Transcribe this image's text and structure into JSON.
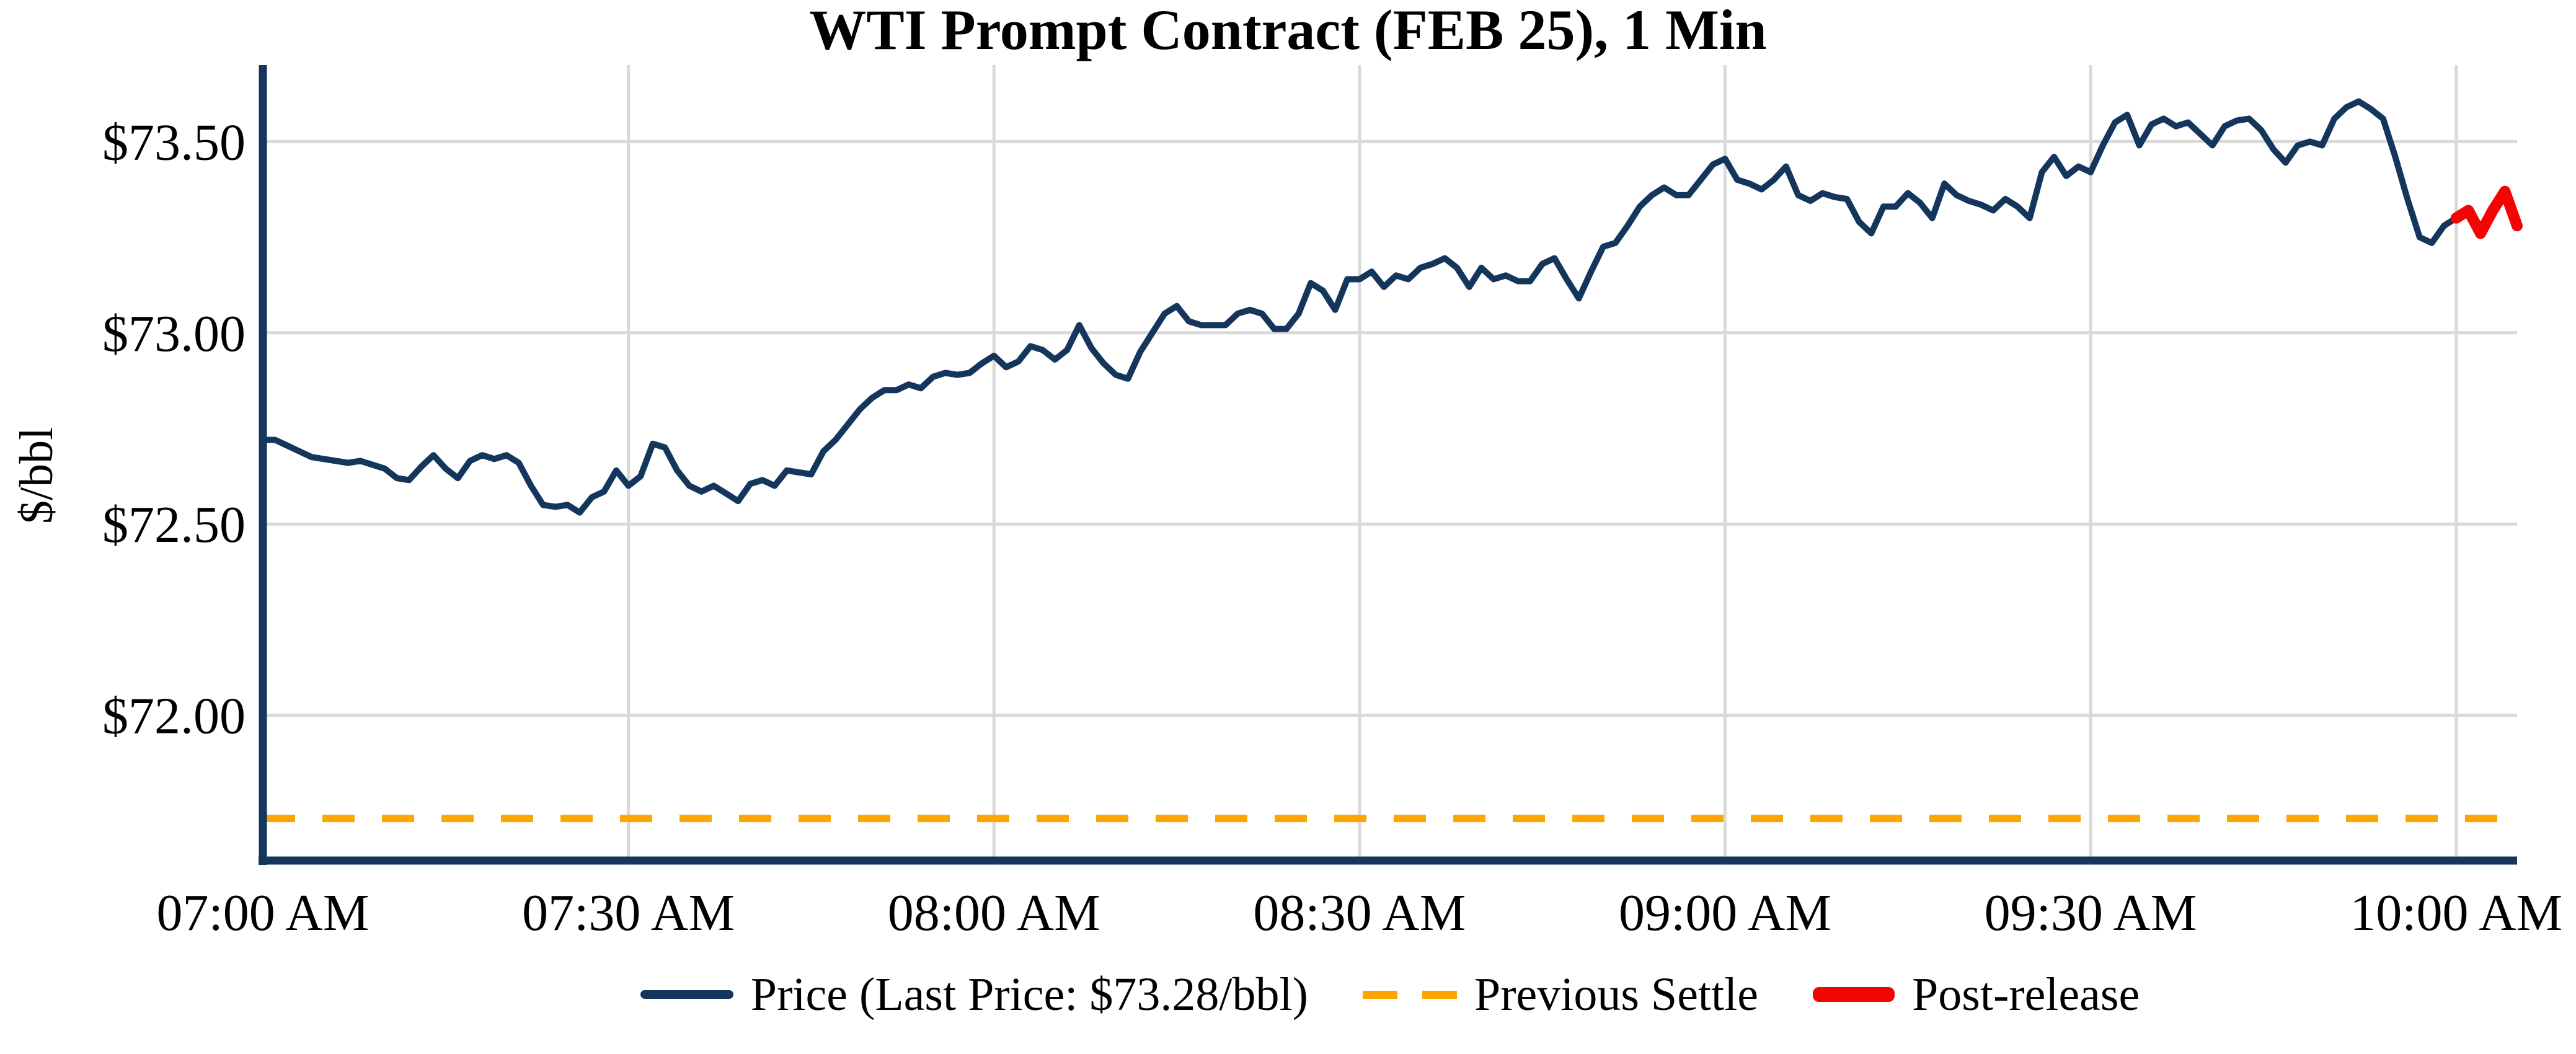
{
  "figure": {
    "title": "WTI Prompt Contract (FEB 25), 1 Min"
  },
  "legend": {
    "items": [
      {
        "name": "price",
        "label": "Price (Last Price: $73.28/bbl)",
        "swatch": "solid-line",
        "color": "#14365C"
      },
      {
        "name": "previous-settle",
        "label": "Previous Settle",
        "swatch": "dashed-line",
        "color": "#FFA500"
      },
      {
        "name": "post-release",
        "label": "Post-release",
        "swatch": "thick-line",
        "color": "#F40505"
      }
    ]
  },
  "colors": {
    "price_line": "#14365C",
    "previous_settle_line": "#FFA500",
    "post_release_line": "#F40505",
    "grid": "#D9D9D9",
    "axis": "#14365C",
    "text": "#000000",
    "background": "#FFFFFF"
  },
  "chart_data": {
    "type": "line",
    "title": "WTI Prompt Contract (FEB 25), 1 Min",
    "xlabel": "",
    "ylabel": "$/bbl",
    "last_price": 73.28,
    "previous_settle": {
      "value": 71.73,
      "style": "dashed",
      "color": "#FFA500"
    },
    "x_axis": {
      "unit": "minutes-after-07:00-AM",
      "range_minutes": [
        0,
        185
      ],
      "tick_minutes": [
        0,
        30,
        60,
        90,
        120,
        150,
        180
      ],
      "tick_labels": [
        "07:00 AM",
        "07:30 AM",
        "08:00 AM",
        "08:30 AM",
        "09:00 AM",
        "09:30 AM",
        "10:00 AM"
      ]
    },
    "y_axis": {
      "range": [
        71.62,
        73.7
      ],
      "tick_values": [
        73.5,
        73.0,
        72.5,
        72.0
      ],
      "tick_labels": [
        "$73.50",
        "$73.00",
        "$72.50",
        "$72.00"
      ],
      "grid": true
    },
    "series": [
      {
        "name": "Price",
        "color": "#14365C",
        "width": 10,
        "start_minute": 0,
        "step_minutes": 1,
        "values": [
          72.72,
          72.72,
          72.705,
          72.69,
          72.675,
          72.67,
          72.665,
          72.66,
          72.665,
          72.655,
          72.645,
          72.62,
          72.615,
          72.65,
          72.68,
          72.645,
          72.62,
          72.665,
          72.68,
          72.67,
          72.68,
          72.66,
          72.6,
          72.55,
          72.545,
          72.55,
          72.53,
          72.57,
          72.585,
          72.64,
          72.6,
          72.625,
          72.71,
          72.7,
          72.64,
          72.6,
          72.585,
          72.6,
          72.58,
          72.56,
          72.605,
          72.615,
          72.6,
          72.64,
          72.635,
          72.63,
          72.69,
          72.72,
          72.76,
          72.8,
          72.83,
          72.85,
          72.85,
          72.865,
          72.855,
          72.885,
          72.895,
          72.89,
          72.895,
          72.92,
          72.94,
          72.91,
          72.925,
          72.965,
          72.955,
          72.93,
          72.955,
          73.02,
          72.96,
          72.92,
          72.89,
          72.88,
          72.95,
          73.0,
          73.05,
          73.07,
          73.03,
          73.02,
          73.02,
          73.02,
          73.05,
          73.06,
          73.05,
          73.01,
          73.01,
          73.05,
          73.13,
          73.11,
          73.06,
          73.14,
          73.14,
          73.16,
          73.12,
          73.15,
          73.14,
          73.17,
          73.18,
          73.195,
          73.17,
          73.12,
          73.17,
          73.14,
          73.15,
          73.135,
          73.135,
          73.18,
          73.195,
          73.14,
          73.09,
          73.16,
          73.225,
          73.235,
          73.28,
          73.33,
          73.36,
          73.38,
          73.36,
          73.36,
          73.4,
          73.44,
          73.455,
          73.4,
          73.39,
          73.375,
          73.4,
          73.435,
          73.36,
          73.345,
          73.365,
          73.355,
          73.35,
          73.29,
          73.26,
          73.33,
          73.33,
          73.365,
          73.34,
          73.3,
          73.39,
          73.36,
          73.345,
          73.335,
          73.32,
          73.35,
          73.33,
          73.3,
          73.42,
          73.46,
          73.41,
          73.435,
          73.42,
          73.49,
          73.55,
          73.57,
          73.49,
          73.545,
          73.56,
          73.54,
          73.55,
          73.52,
          73.49,
          73.54,
          73.555,
          73.56,
          73.53,
          73.48,
          73.445,
          73.49,
          73.5,
          73.49,
          73.56,
          73.59,
          73.605,
          73.585,
          73.56,
          73.46,
          73.35,
          73.25,
          73.235,
          73.28,
          73.3
        ]
      },
      {
        "name": "Post-release",
        "color": "#F40505",
        "width": 18,
        "start_minute": 180,
        "step_minutes": 1,
        "values": [
          73.3,
          73.32,
          73.26,
          73.32,
          73.37,
          73.28
        ]
      }
    ],
    "legend_entries": [
      "Price (Last Price: $73.28/bbl)",
      "Previous Settle",
      "Post-release"
    ],
    "legend_position": "bottom-center",
    "grid_on": true
  }
}
